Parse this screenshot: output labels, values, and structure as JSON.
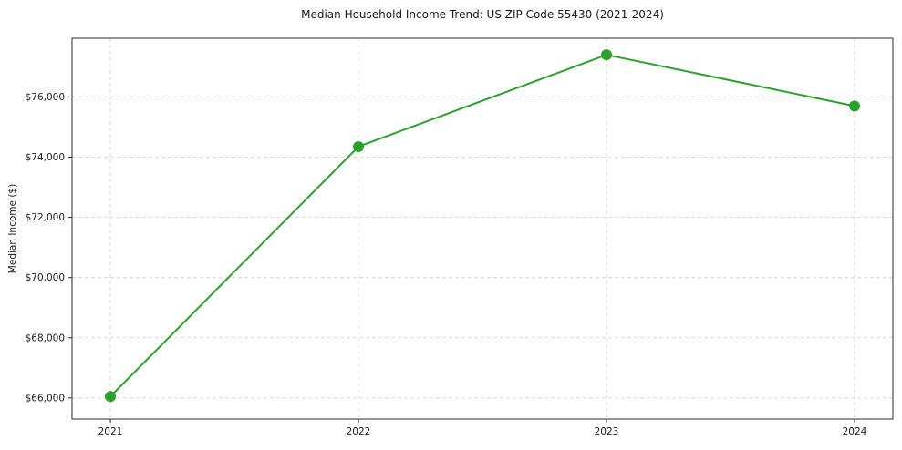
{
  "chart_data": {
    "type": "line",
    "title": "Median Household Income Trend: US ZIP Code 55430 (2021-2024)",
    "xlabel": "",
    "ylabel": "Median Income ($)",
    "categories": [
      "2021",
      "2022",
      "2023",
      "2024"
    ],
    "series": [
      {
        "name": "Median Household Income",
        "values": [
          66050,
          74350,
          77400,
          75700
        ],
        "color": "#2ca02c",
        "marker": "circle"
      }
    ],
    "ylim": [
      65300,
      77950
    ],
    "y_ticks": [
      {
        "value": 66000,
        "label": "$66,000"
      },
      {
        "value": 68000,
        "label": "$68,000"
      },
      {
        "value": 70000,
        "label": "$70,000"
      },
      {
        "value": 72000,
        "label": "$72,000"
      },
      {
        "value": 74000,
        "label": "$74,000"
      },
      {
        "value": 76000,
        "label": "$76,000"
      }
    ],
    "grid": true,
    "grid_style": "dashed",
    "grid_color": "#cfcfcf",
    "spine_color": "#2b2b2b",
    "background_color": "#ffffff",
    "legend_position": "none"
  }
}
